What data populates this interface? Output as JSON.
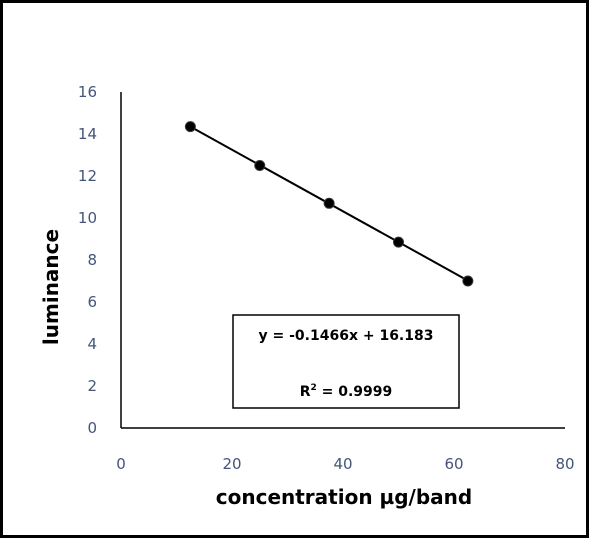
{
  "chart_data": {
    "type": "scatter",
    "title": "",
    "xlabel": "concentration µg/band",
    "ylabel": "luminance",
    "xlim": [
      0,
      80
    ],
    "ylim": [
      0,
      16
    ],
    "x_ticks": [
      "0",
      "20",
      "40",
      "60",
      "80"
    ],
    "y_ticks": [
      "0",
      "2",
      "4",
      "6",
      "8",
      "10",
      "12",
      "14",
      "16"
    ],
    "grid": false,
    "legend": "none",
    "series": [
      {
        "x": [
          12.5,
          25,
          37.5,
          50,
          62.5
        ],
        "y": [
          14.35,
          12.5,
          10.7,
          8.85,
          7.0
        ]
      }
    ],
    "trendline": {
      "type": "linear",
      "slope": -0.1466,
      "intercept": 16.183,
      "x_range": [
        12.5,
        62.5
      ]
    },
    "annotations": {
      "equation": "y = -0.1466x + 16.183",
      "r2_prefix": "R",
      "r2_sup": "2",
      "r2_value": " = 0.9999"
    },
    "colors": {
      "tick_labels": "#44547a",
      "points": "#000000",
      "line": "#000000",
      "frame": "#000000"
    }
  }
}
